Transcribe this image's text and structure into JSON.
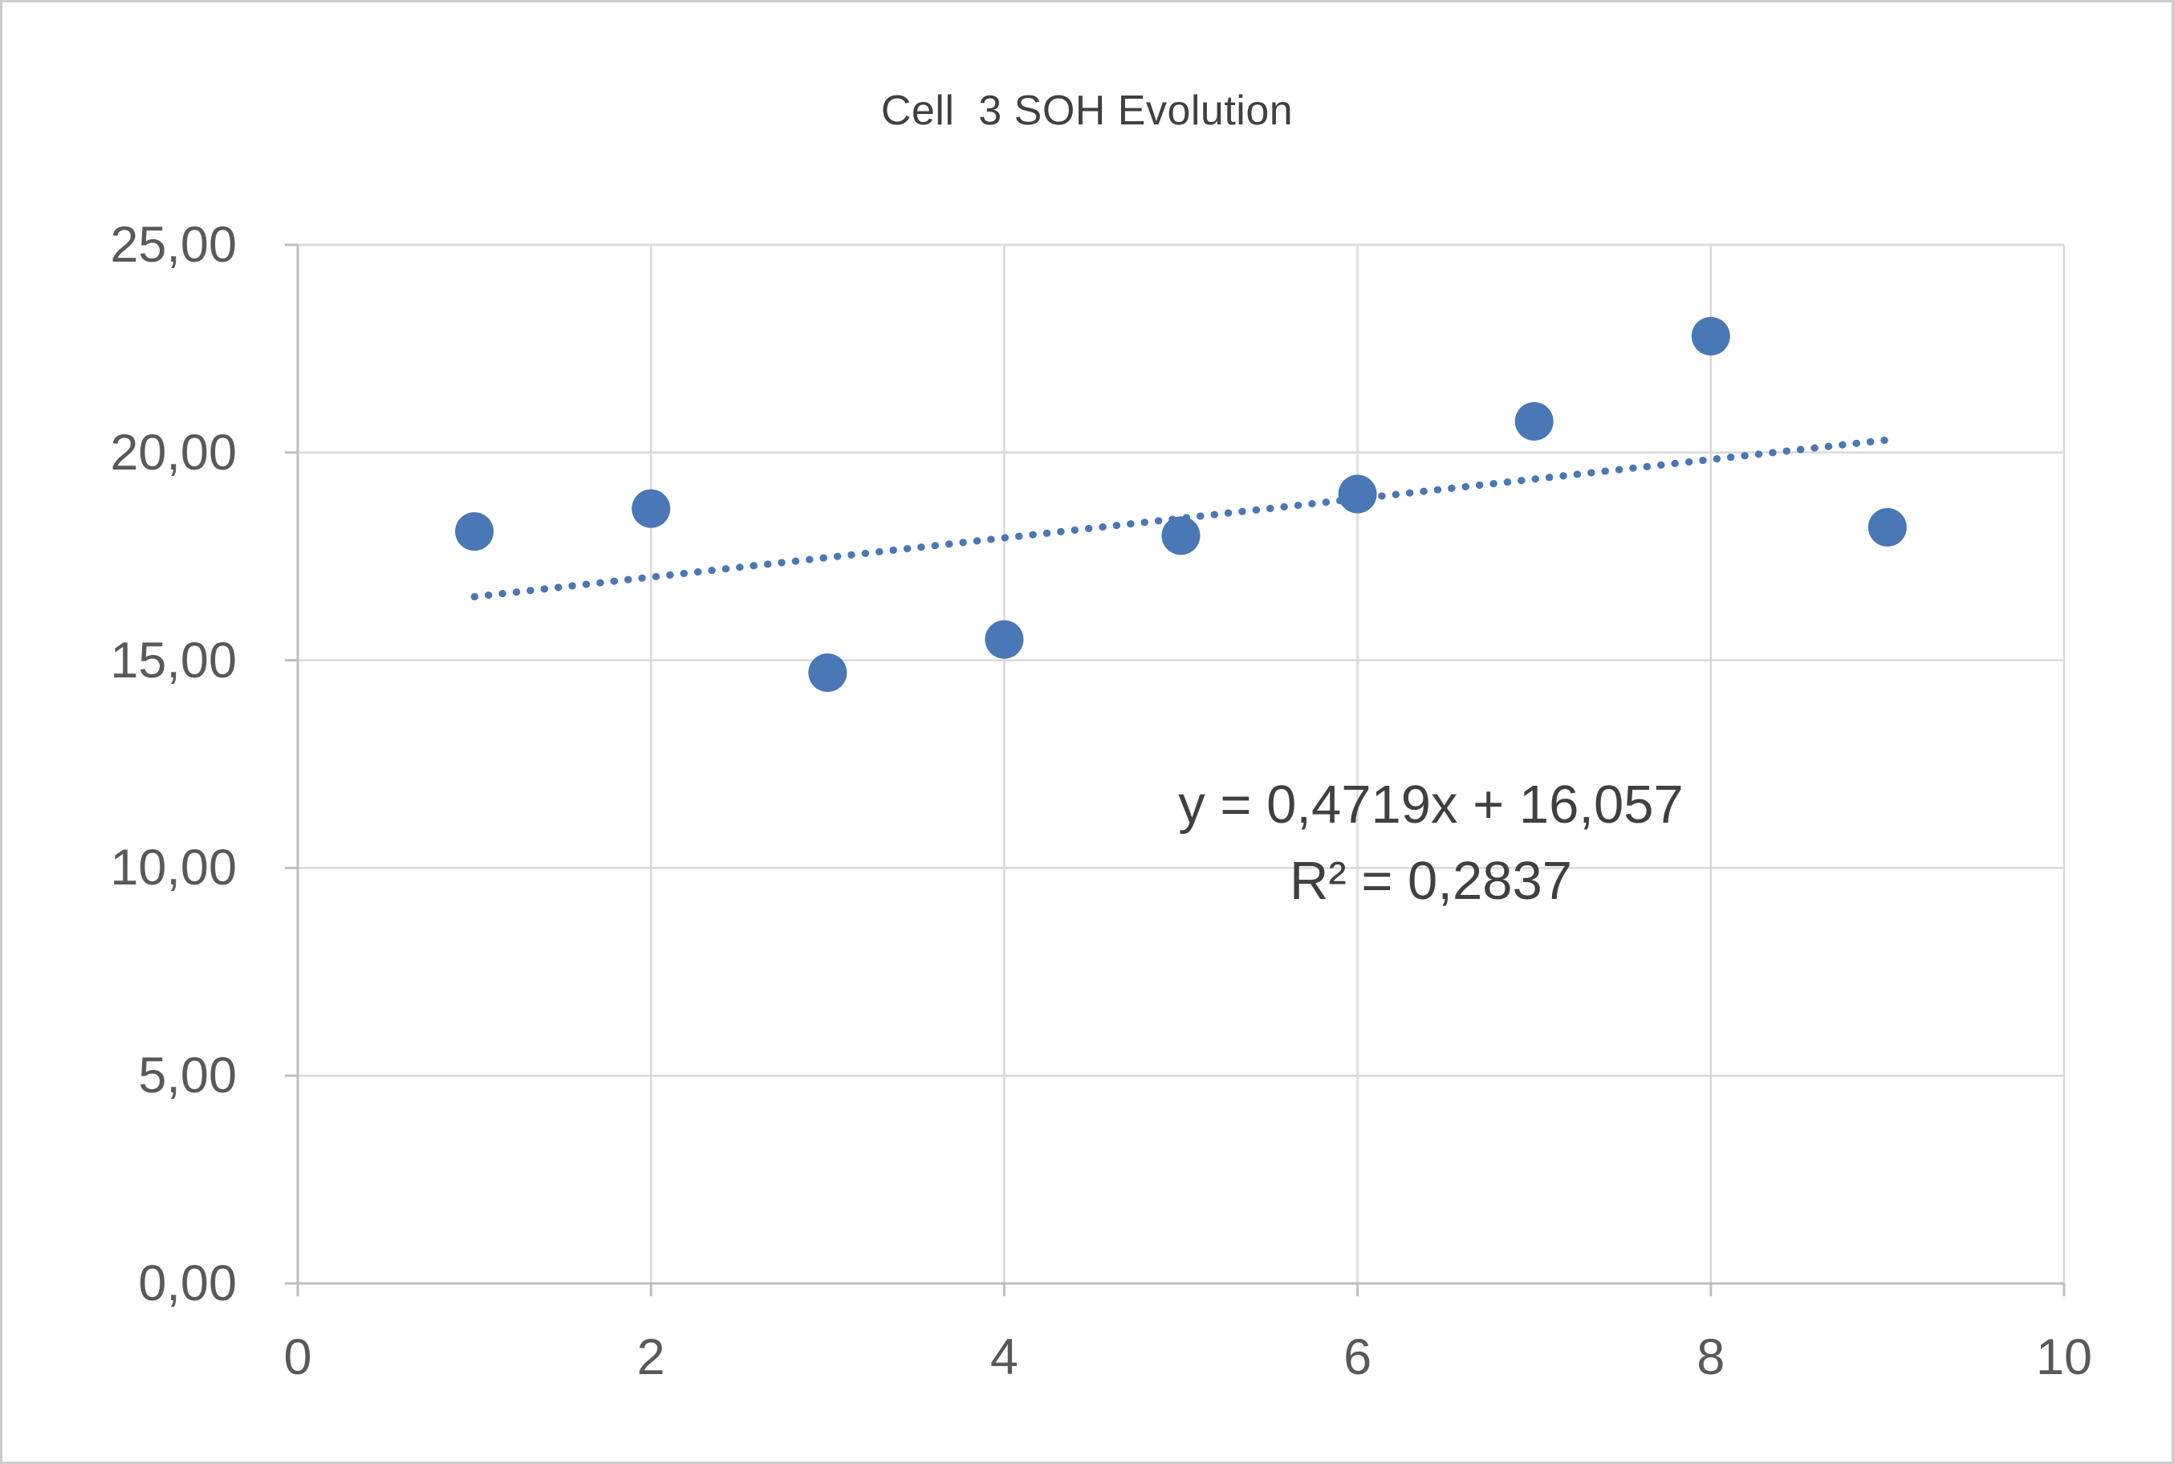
{
  "chart": {
    "title": "Cell  3 SOH Evolution",
    "annotation": {
      "equation": "y = 0,4719x + 16,057",
      "r_squared": "R² = 0,2837"
    }
  },
  "chart_data": {
    "type": "scatter",
    "title": "Cell  3 SOH Evolution",
    "x": [
      1,
      2,
      3,
      4,
      5,
      6,
      7,
      8,
      9
    ],
    "y": [
      18.1,
      18.65,
      14.7,
      15.5,
      18.0,
      19.0,
      20.75,
      22.8,
      18.2
    ],
    "xlim": [
      0,
      10
    ],
    "ylim": [
      0,
      25
    ],
    "x_ticks": [
      0,
      2,
      4,
      6,
      8,
      10
    ],
    "y_ticks": [
      0,
      5,
      10,
      15,
      20,
      25
    ],
    "x_tick_labels": [
      "0",
      "2",
      "4",
      "6",
      "8",
      "10"
    ],
    "y_tick_labels": [
      "0,00",
      "5,00",
      "10,00",
      "15,00",
      "20,00",
      "25,00"
    ],
    "grid": true,
    "legend": "none",
    "trendline": {
      "type": "linear",
      "style": "dotted",
      "slope": 0.4719,
      "intercept": 16.057,
      "x_start": 1,
      "x_end": 9,
      "equation_label": "y = 0,4719x + 16,057",
      "r2_label": "R² = 0,2837"
    },
    "colors": {
      "marker": "#4a77b5",
      "trendline": "#4a77b5",
      "gridline": "#d9d9d9",
      "axis_line": "#bfbfbf",
      "title_text": "#404040",
      "tick_text": "#595959",
      "annotation_text": "#404040"
    }
  }
}
